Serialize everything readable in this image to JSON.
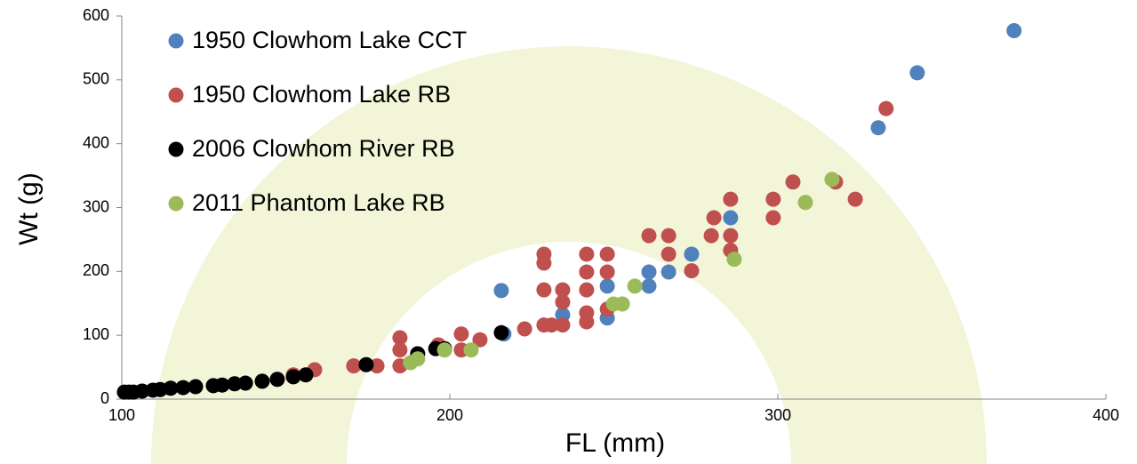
{
  "chart_data": {
    "type": "scatter",
    "x_label": "FL  (mm)",
    "y_label": "Wt (g)",
    "xlim": [
      100,
      400
    ],
    "ylim": [
      0,
      600
    ],
    "xticks": [
      100,
      200,
      300,
      400
    ],
    "yticks": [
      0,
      100,
      200,
      300,
      400,
      500,
      600
    ],
    "grid": false,
    "legend": "upper-left",
    "series": [
      {
        "name": "1950 Clowhom Lake CCT",
        "color": "#4f81bd",
        "x": [
          372,
          342.5,
          330.6,
          285.6,
          273.7,
          266.7,
          260.7,
          260.7,
          248,
          248,
          234.4,
          215.7,
          216.5
        ],
        "values": [
          577,
          511,
          425,
          284,
          227,
          199,
          199,
          177,
          177,
          127,
          132,
          170,
          102
        ]
      },
      {
        "name": "1950 Clowhom Lake RB",
        "color": "#c0504d",
        "x": [
          333,
          323.6,
          317.6,
          304.6,
          298.6,
          298.6,
          285.6,
          285.6,
          285.6,
          279.7,
          280.5,
          273.7,
          266.7,
          266.7,
          260.7,
          248,
          248,
          241.7,
          241.7,
          241.7,
          241.7,
          241.7,
          248,
          234.4,
          234.4,
          228.7,
          228.7,
          228.7,
          228.7,
          231,
          234.4,
          222.8,
          209.2,
          203.5,
          203.5,
          196.5,
          184.8,
          184.8,
          184.8,
          177.8,
          170.7,
          158.8,
          152.3
        ],
        "values": [
          455,
          313,
          340,
          340,
          313,
          284,
          313,
          256,
          233,
          256,
          284,
          201,
          227,
          256,
          256,
          227,
          199,
          227,
          199,
          171,
          135,
          121,
          141,
          171,
          152,
          227,
          213,
          171,
          116,
          116,
          116,
          110,
          93,
          102,
          77,
          85,
          96,
          77,
          52,
          52,
          52,
          46,
          38
        ]
      },
      {
        "name": "2006 Clowhom River RB",
        "color": "#000000",
        "x": [
          100.8,
          102.2,
          103.6,
          106.2,
          109.5,
          111.7,
          114.9,
          118.7,
          122.5,
          127.9,
          130.6,
          134.4,
          137.7,
          142.8,
          147.4,
          152.3,
          156.1,
          174.5,
          190.2,
          195.7,
          198.4,
          215.7
        ],
        "values": [
          11,
          11,
          11,
          12.5,
          14,
          15,
          17,
          18,
          19.5,
          21,
          22,
          24,
          25,
          28,
          31,
          35,
          38,
          54,
          71,
          79,
          79,
          104
        ]
      },
      {
        "name": "2011 Phantom Lake RB",
        "color": "#9bbb59",
        "x": [
          316.5,
          308.4,
          286.7,
          256.4,
          252.6,
          249.9,
          206.5,
          198.4,
          190.2,
          188
        ],
        "values": [
          344,
          308,
          219,
          177,
          149,
          149,
          77,
          77,
          63,
          57
        ]
      }
    ]
  }
}
